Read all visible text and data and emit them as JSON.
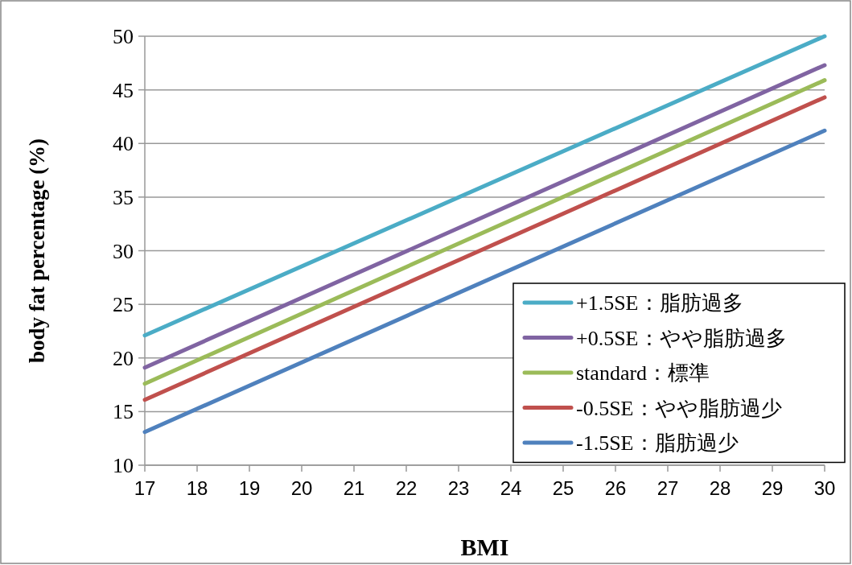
{
  "chart_data": {
    "type": "line",
    "xlabel": "BMI",
    "ylabel": "body fat percentage (%)",
    "x": [
      17,
      30
    ],
    "xlim": [
      17,
      30
    ],
    "xticks": [
      17,
      18,
      19,
      20,
      21,
      22,
      23,
      24,
      25,
      26,
      27,
      28,
      29,
      30
    ],
    "ylim": [
      10,
      50
    ],
    "yticks": [
      10,
      15,
      20,
      25,
      30,
      35,
      40,
      45,
      50
    ],
    "grid": "y",
    "legend": "bottom right",
    "marker": "none",
    "line_style": "solid",
    "series": [
      {
        "name": "+1.5SE：脂肪過多",
        "color": "#4bacc6",
        "values": [
          22.1,
          50
        ]
      },
      {
        "name": "+0.5SE：やや脂肪過多",
        "color": "#8064a2",
        "values": [
          19.1,
          47.3
        ]
      },
      {
        "name": "standard：標準",
        "color": "#9bbb59",
        "values": [
          17.6,
          45.9
        ]
      },
      {
        "name": "-0.5SE：やや脂肪過少",
        "color": "#c0504d",
        "values": [
          16.1,
          44.3
        ]
      },
      {
        "name": "-1.5SE：脂肪過少",
        "color": "#4f81bd",
        "values": [
          13.1,
          41.2
        ]
      }
    ]
  }
}
